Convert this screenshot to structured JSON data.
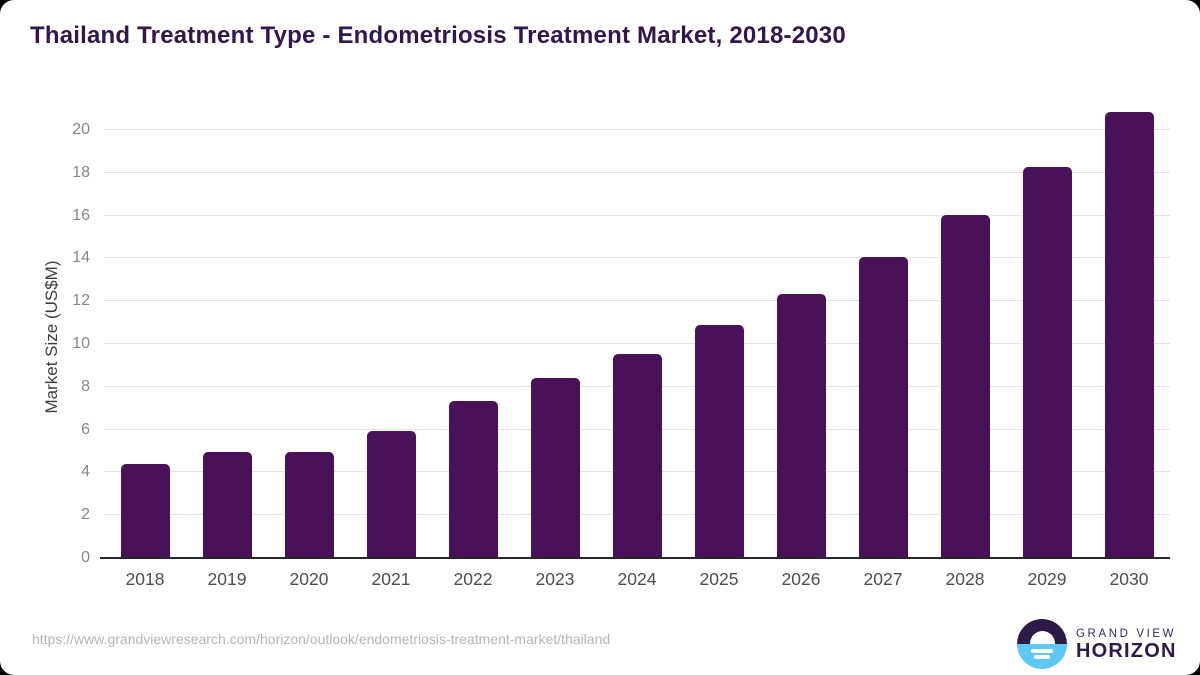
{
  "title": "Thailand Treatment Type - Endometriosis Treatment Market, 2018-2030",
  "chart_data": {
    "type": "bar",
    "title": "Thailand Treatment Type - Endometriosis Treatment Market, 2018-2030",
    "categories": [
      "2018",
      "2019",
      "2020",
      "2021",
      "2022",
      "2023",
      "2024",
      "2025",
      "2026",
      "2027",
      "2028",
      "2029",
      "2030"
    ],
    "values": [
      4.38,
      4.95,
      4.97,
      5.92,
      7.35,
      8.4,
      9.55,
      10.88,
      12.35,
      14.05,
      16.05,
      18.25,
      20.85
    ],
    "xlabel": "",
    "ylabel": "Market Size (US$M)",
    "yticks": [
      0,
      2,
      4,
      6,
      8,
      10,
      12,
      14,
      16,
      18,
      20
    ],
    "ylim": [
      0,
      21.4
    ],
    "grid": "horizontal",
    "legend": "none",
    "bar_color": "#491158"
  },
  "colors": {
    "title": "#31174a",
    "bar": "#491158",
    "gridline": "#e3e3e3",
    "axis_line": "#262626",
    "x_tick": "#4d4d4d",
    "y_tick": "#878787",
    "url_text": "#b5b5b5",
    "logo_dark": "#2d1b47",
    "logo_blue": "#5ec8f5"
  },
  "footer": {
    "source_url": "https://www.grandviewresearch.com/horizon/outlook/endometriosis-treatment-market/thailand",
    "logo": {
      "top": "GRAND VIEW",
      "bottom": "HORIZON",
      "icon": "horizon-sunrise-icon"
    }
  }
}
